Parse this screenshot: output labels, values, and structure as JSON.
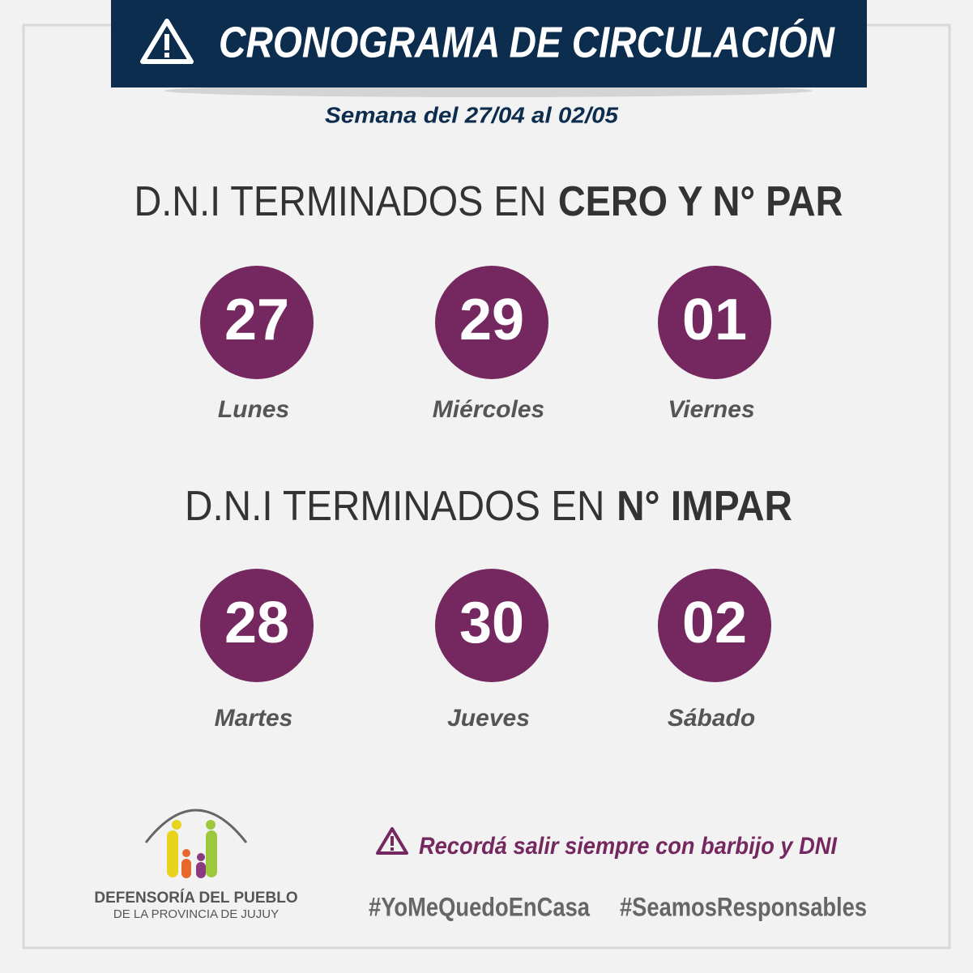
{
  "header": {
    "title": "CRONOGRAMA DE CIRCULACIÓN",
    "subtitle": "Semana del 27/04 al 02/05"
  },
  "groups": [
    {
      "heading": "D.N.I TERMINADOS EN",
      "heading_bold": "CERO Y N° PAR",
      "days": [
        {
          "date": "27",
          "name": "Lunes"
        },
        {
          "date": "29",
          "name": "Miércoles"
        },
        {
          "date": "01",
          "name": "Viernes"
        }
      ]
    },
    {
      "heading": "D.N.I TERMINADOS EN",
      "heading_bold": "N° IMPAR",
      "days": [
        {
          "date": "28",
          "name": "Martes"
        },
        {
          "date": "30",
          "name": "Jueves"
        },
        {
          "date": "02",
          "name": "Sábado"
        }
      ]
    }
  ],
  "footer": {
    "org_name": "DEFENSORÍA DEL PUEBLO",
    "org_region": "DE LA PROVINCIA DE JUJUY",
    "reminder": "Recordá salir siempre con barbijo y DNI",
    "hashtags": [
      "#YoMeQuedoEnCasa",
      "#SeamosResponsables"
    ]
  }
}
